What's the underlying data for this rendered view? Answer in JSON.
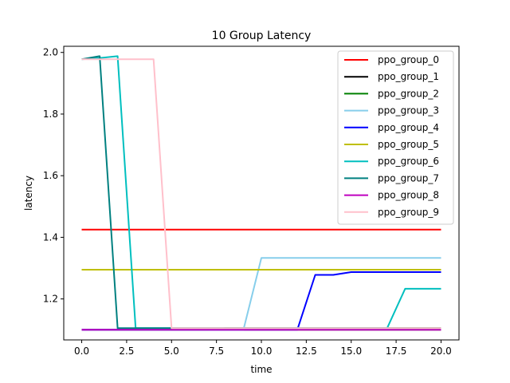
{
  "chart_data": {
    "type": "line",
    "title": "10 Group Latency",
    "xlabel": "time",
    "ylabel": "latency",
    "xlim": [
      -1,
      21
    ],
    "ylim": [
      1.067,
      2.02
    ],
    "xticks": [
      0.0,
      2.5,
      5.0,
      7.5,
      10.0,
      12.5,
      15.0,
      17.5,
      20.0
    ],
    "xtick_labels": [
      "0.0",
      "2.5",
      "5.0",
      "7.5",
      "10.0",
      "12.5",
      "15.0",
      "17.5",
      "20.0"
    ],
    "yticks": [
      1.2,
      1.4,
      1.6,
      1.8,
      2.0
    ],
    "ytick_labels": [
      "1.2",
      "1.4",
      "1.6",
      "1.8",
      "2.0"
    ],
    "legend_position": "top-right",
    "grid": false,
    "series": [
      {
        "name": "ppo_group_0",
        "color": "#ff0000",
        "x": [
          0,
          20
        ],
        "y": [
          1.425,
          1.425
        ]
      },
      {
        "name": "ppo_group_1",
        "color": "#000000",
        "x": [
          0,
          20
        ],
        "y": [
          1.1,
          1.1
        ]
      },
      {
        "name": "ppo_group_2",
        "color": "#008000",
        "x": [
          0,
          7,
          8,
          9,
          10,
          11,
          12,
          13,
          20
        ],
        "y": [
          1.1,
          1.1,
          1.105,
          1.105,
          1.105,
          1.105,
          1.105,
          1.105,
          1.105
        ]
      },
      {
        "name": "ppo_group_3",
        "color": "#87ceeb",
        "x": [
          0,
          9,
          10,
          20
        ],
        "y": [
          1.1,
          1.1,
          1.333,
          1.333
        ]
      },
      {
        "name": "ppo_group_4",
        "color": "#0000ff",
        "x": [
          0,
          12,
          13,
          14,
          15,
          20
        ],
        "y": [
          1.1,
          1.1,
          1.278,
          1.278,
          1.287,
          1.287
        ]
      },
      {
        "name": "ppo_group_5",
        "color": "#bfbf00",
        "x": [
          0,
          20
        ],
        "y": [
          1.295,
          1.295
        ]
      },
      {
        "name": "ppo_group_6",
        "color": "#00bfbf",
        "x": [
          0,
          1,
          2,
          3,
          4,
          17,
          18,
          20
        ],
        "y": [
          1.978,
          1.982,
          1.988,
          1.105,
          1.105,
          1.105,
          1.233,
          1.233
        ]
      },
      {
        "name": "ppo_group_7",
        "color": "#008080",
        "x": [
          0,
          1,
          2,
          3,
          20
        ],
        "y": [
          1.978,
          1.988,
          1.105,
          1.105,
          1.105
        ]
      },
      {
        "name": "ppo_group_8",
        "color": "#bf00bf",
        "x": [
          0,
          20
        ],
        "y": [
          1.1,
          1.1
        ]
      },
      {
        "name": "ppo_group_9",
        "color": "#ffc0cb",
        "x": [
          0,
          1,
          2,
          3,
          4,
          5,
          20
        ],
        "y": [
          1.978,
          1.978,
          1.978,
          1.978,
          1.978,
          1.105,
          1.105
        ]
      }
    ]
  }
}
